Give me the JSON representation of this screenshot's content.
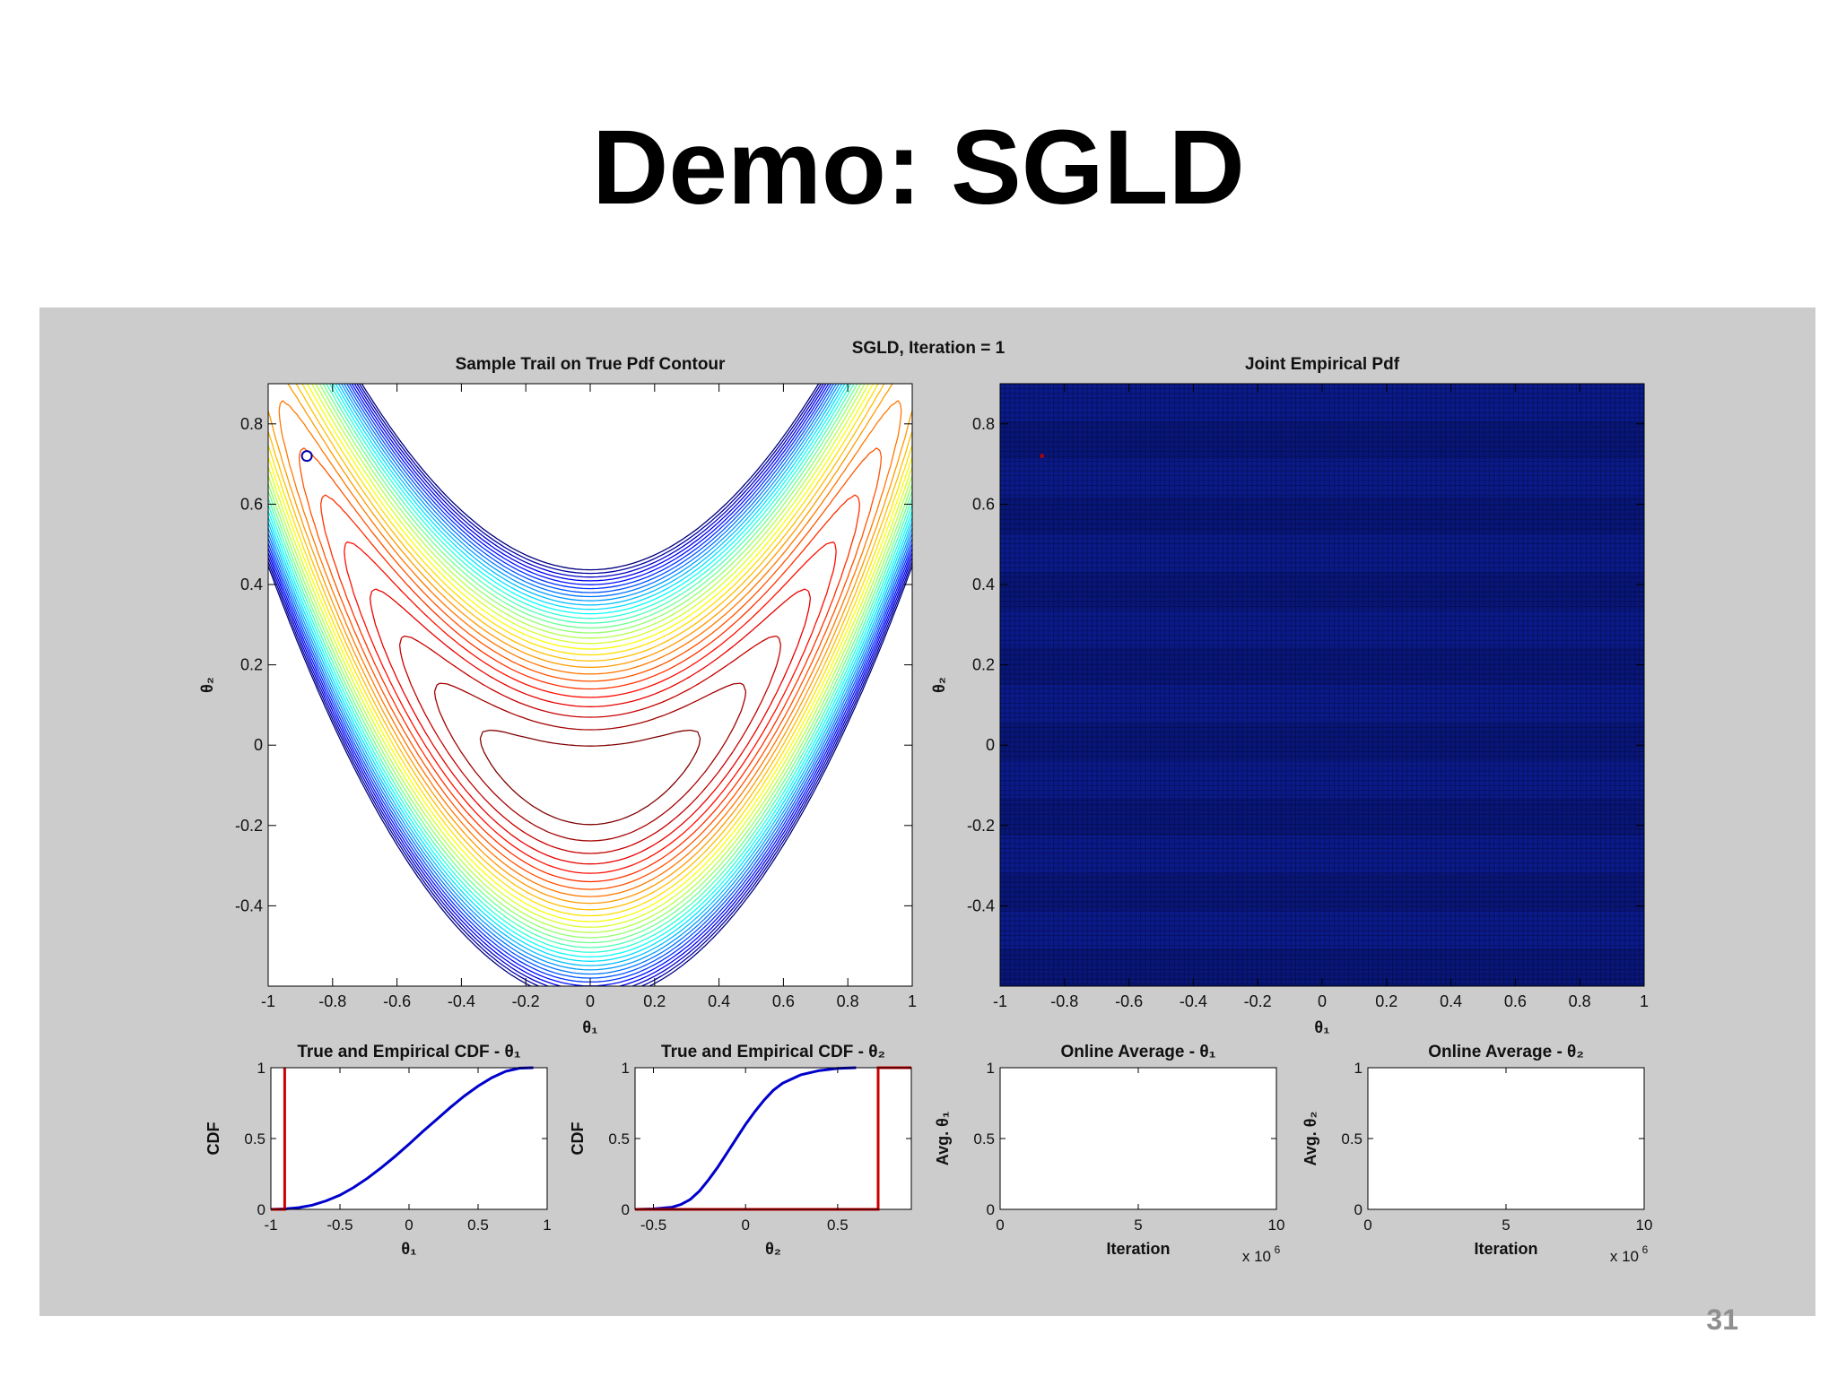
{
  "slide": {
    "title": "Demo: SGLD",
    "page_number": "31"
  },
  "figure": {
    "suptitle": "SGLD, Iteration = 1",
    "background": "#cccccc"
  },
  "chart_data": [
    {
      "type": "contour",
      "title": "Sample Trail on True Pdf Contour",
      "xlabel": "θ₁",
      "ylabel": "θ₂",
      "xlim": [
        -1,
        1
      ],
      "ylim": [
        -0.6,
        0.9
      ],
      "xticks": [
        -1,
        -0.8,
        -0.6,
        -0.4,
        -0.2,
        0,
        0.2,
        0.4,
        0.6,
        0.8,
        1
      ],
      "yticks": [
        -0.4,
        -0.2,
        0,
        0.2,
        0.4,
        0.6,
        0.8
      ],
      "sample_point": {
        "x": -0.88,
        "y": 0.72
      },
      "colormap": "jet"
    },
    {
      "type": "heatmap",
      "title": "Joint Empirical Pdf",
      "xlabel": "θ₁",
      "ylabel": "θ₂",
      "xlim": [
        -1,
        1
      ],
      "ylim": [
        -0.6,
        0.9
      ],
      "xticks": [
        -1,
        -0.8,
        -0.6,
        -0.4,
        -0.2,
        0,
        0.2,
        0.4,
        0.6,
        0.8,
        1
      ],
      "yticks": [
        -0.4,
        -0.2,
        0,
        0.2,
        0.4,
        0.6,
        0.8
      ],
      "background_color": "#0a1a8a",
      "sample_point": {
        "x": -0.87,
        "y": 0.72
      }
    },
    {
      "type": "line",
      "title": "True and Empirical CDF - θ₁",
      "xlabel": "θ₁",
      "ylabel": "CDF",
      "xlim": [
        -1,
        1
      ],
      "ylim": [
        0,
        1
      ],
      "xticks": [
        -1,
        -0.5,
        0,
        0.5,
        1
      ],
      "yticks": [
        0,
        0.5,
        1
      ],
      "series": [
        {
          "color": "#0000cc",
          "x": [
            -1,
            -0.9,
            -0.8,
            -0.7,
            -0.6,
            -0.5,
            -0.4,
            -0.3,
            -0.2,
            -0.1,
            0,
            0.1,
            0.2,
            0.3,
            0.4,
            0.5,
            0.6,
            0.7,
            0.8,
            0.9
          ],
          "y": [
            0,
            0.003,
            0.012,
            0.03,
            0.06,
            0.1,
            0.155,
            0.22,
            0.295,
            0.375,
            0.46,
            0.55,
            0.635,
            0.72,
            0.8,
            0.87,
            0.93,
            0.975,
            0.997,
            1.0
          ]
        },
        {
          "color": "#cc0000",
          "x": [
            -1,
            -0.9,
            -0.9,
            -0.9
          ],
          "y": [
            0,
            0,
            1,
            1
          ]
        }
      ]
    },
    {
      "type": "line",
      "title": "True and Empirical CDF - θ₂",
      "xlabel": "θ₂",
      "ylabel": "CDF",
      "xlim": [
        -0.6,
        0.9
      ],
      "ylim": [
        0,
        1
      ],
      "xticks": [
        -0.5,
        0,
        0.5
      ],
      "yticks": [
        0,
        0.5,
        1
      ],
      "series": [
        {
          "color": "#0000cc",
          "x": [
            -0.6,
            -0.5,
            -0.4,
            -0.35,
            -0.3,
            -0.25,
            -0.2,
            -0.15,
            -0.1,
            -0.05,
            0,
            0.05,
            0.1,
            0.15,
            0.2,
            0.3,
            0.4,
            0.5,
            0.6
          ],
          "y": [
            0,
            0.003,
            0.015,
            0.035,
            0.07,
            0.13,
            0.21,
            0.3,
            0.4,
            0.5,
            0.6,
            0.69,
            0.77,
            0.84,
            0.89,
            0.95,
            0.98,
            0.995,
            1.0
          ]
        },
        {
          "color": "#cc0000",
          "x": [
            -0.6,
            0.72,
            0.72,
            0.9
          ],
          "y": [
            0,
            0,
            1,
            1
          ]
        }
      ]
    },
    {
      "type": "line",
      "title": "Online Average - θ₁",
      "xlabel": "Iteration",
      "ylabel": "Avg. θ₁",
      "xlim": [
        0,
        10
      ],
      "ylim": [
        0,
        1
      ],
      "xticks": [
        0,
        5,
        10
      ],
      "yticks": [
        0,
        0.5,
        1
      ],
      "x_multiplier": "x 10",
      "x_multiplier_exponent": "6",
      "series": []
    },
    {
      "type": "line",
      "title": "Online Average - θ₂",
      "xlabel": "Iteration",
      "ylabel": "Avg. θ₂",
      "xlim": [
        0,
        10
      ],
      "ylim": [
        0,
        1
      ],
      "xticks": [
        0,
        5,
        10
      ],
      "yticks": [
        0,
        0.5,
        1
      ],
      "x_multiplier": "x 10",
      "x_multiplier_exponent": "6",
      "series": []
    }
  ]
}
